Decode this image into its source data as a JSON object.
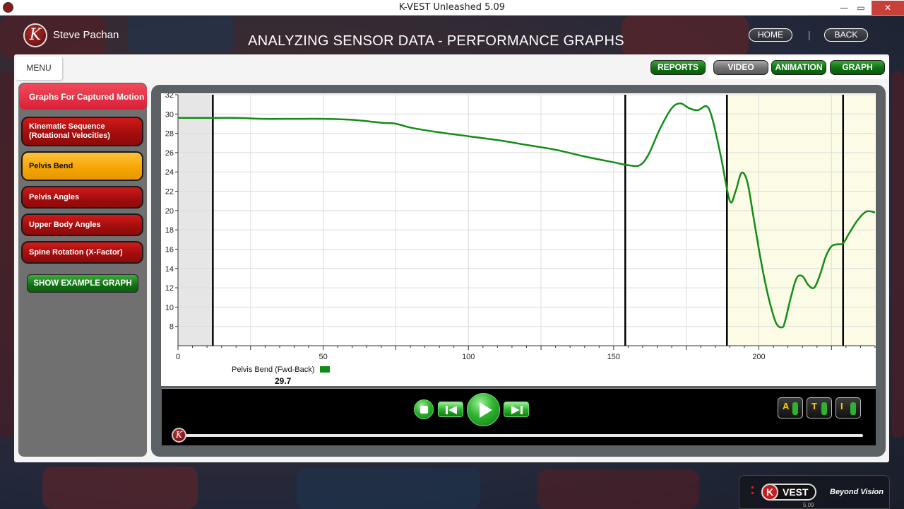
{
  "window": {
    "title": "K-VEST Unleashed 5.09",
    "minimize": "—",
    "maximize": "▭",
    "close": "✕"
  },
  "header": {
    "logo_letter": "K",
    "username": "Steve Pachan",
    "page_title": "ANALYZING SENSOR DATA - PERFORMANCE GRAPHS",
    "home_label": "HOME",
    "separator": "|",
    "back_label": "BACK"
  },
  "menu": {
    "label": "MENU"
  },
  "view_tabs": {
    "reports": "REPORTS",
    "video": "VIDEO",
    "animation": "ANIMATION",
    "graph": "GRAPH"
  },
  "sidebar": {
    "heading": "Graphs For Captured Motion",
    "items": [
      {
        "label": "Kinematic Sequence (Rotational Velocities)",
        "active": false
      },
      {
        "label": "Pelvis Bend",
        "active": true
      },
      {
        "label": "Pelvis Angles",
        "active": false
      },
      {
        "label": "Upper Body Angles",
        "active": false
      },
      {
        "label": "Spine Rotation (X-Factor)",
        "active": false
      }
    ],
    "show_example": "SHOW EXAMPLE GRAPH"
  },
  "legend": {
    "label": "Pelvis Bend (Fwd-Back)",
    "value": "29.7",
    "color": "#138c16"
  },
  "player": {
    "mode_buttons": [
      "A",
      "T",
      "I"
    ],
    "knob_letter": "K"
  },
  "footer": {
    "brand": "VEST",
    "brand_k": "K",
    "tagline": "Beyond Vision",
    "version": "5.09"
  },
  "chart_data": {
    "type": "line",
    "xlim": [
      0,
      240
    ],
    "ylim": [
      6,
      32
    ],
    "x_ticks": [
      0,
      50,
      100,
      150,
      200
    ],
    "y_ticks": [
      8,
      10,
      12,
      14,
      16,
      18,
      20,
      22,
      24,
      26,
      28,
      30,
      32
    ],
    "grid": true,
    "vertical_markers": [
      12,
      154,
      189,
      229
    ],
    "shaded_regions": [
      {
        "from": 0,
        "to": 12,
        "color": "#e6e6e6"
      },
      {
        "from": 189,
        "to": 240,
        "color": "#fbfbe6"
      }
    ],
    "series": [
      {
        "color": "#138c16",
        "x": [
          0,
          10,
          20,
          30,
          40,
          50,
          60,
          70,
          75,
          80,
          90,
          100,
          110,
          120,
          130,
          140,
          150,
          155,
          159,
          162,
          166,
          170,
          173,
          176,
          179,
          182,
          184,
          187,
          190,
          192,
          194,
          196,
          198,
          200,
          202,
          204,
          206,
          208,
          209,
          211,
          213,
          215,
          217,
          219,
          221,
          223,
          225,
          227,
          229,
          231,
          234,
          237,
          240
        ],
        "y": [
          29.6,
          29.6,
          29.6,
          29.5,
          29.5,
          29.5,
          29.4,
          29.1,
          29.0,
          28.6,
          28.1,
          27.7,
          27.3,
          26.8,
          26.3,
          25.6,
          25.0,
          24.7,
          24.7,
          25.8,
          28.5,
          30.6,
          31.1,
          30.6,
          30.4,
          30.8,
          29.5,
          25.5,
          21.0,
          22.0,
          23.9,
          23.0,
          19.6,
          16.0,
          12.8,
          10.2,
          8.3,
          7.9,
          8.5,
          11.0,
          13.0,
          13.2,
          12.3,
          12.0,
          13.3,
          15.2,
          16.3,
          16.5,
          16.6,
          17.6,
          19.0,
          19.9,
          19.8
        ]
      }
    ]
  }
}
